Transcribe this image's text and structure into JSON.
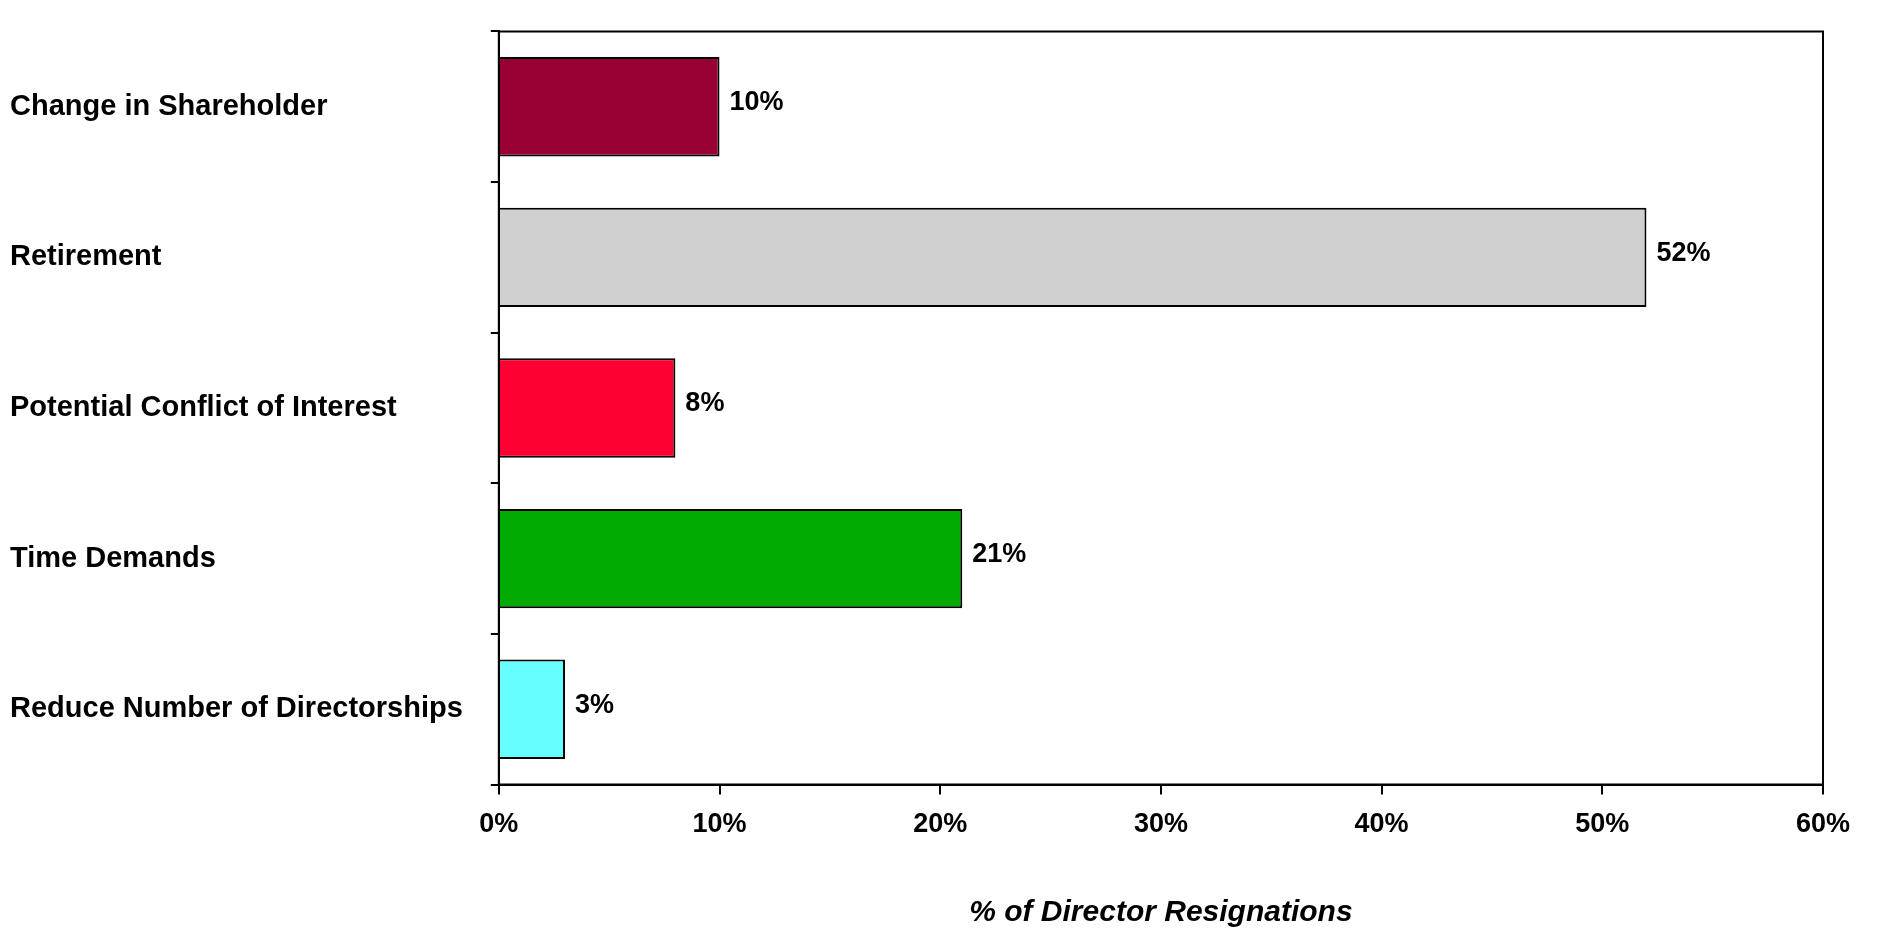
{
  "chart_data": {
    "type": "bar",
    "orientation": "horizontal",
    "xlabel": "% of Director Resignations",
    "categories": [
      "Change in Shareholder",
      "Retirement",
      "Potential Conflict of Interest",
      "Time Demands",
      "Reduce Number of Directorships"
    ],
    "values": [
      10,
      52,
      8,
      21,
      3
    ],
    "colors": [
      "#990033",
      "#d0d0d0",
      "#ff0033",
      "#00aa00",
      "#66ffff"
    ],
    "value_labels": [
      "10%",
      "52%",
      "8%",
      "21%",
      "3%"
    ],
    "xlim": [
      0,
      60
    ],
    "xticks": [
      {
        "value": 0,
        "label": "0%"
      },
      {
        "value": 10,
        "label": "10%"
      },
      {
        "value": 20,
        "label": "20%"
      },
      {
        "value": 30,
        "label": "30%"
      },
      {
        "value": 40,
        "label": "40%"
      },
      {
        "value": 50,
        "label": "50%"
      },
      {
        "value": 60,
        "label": "60%"
      }
    ],
    "grid": false,
    "legend": false
  }
}
